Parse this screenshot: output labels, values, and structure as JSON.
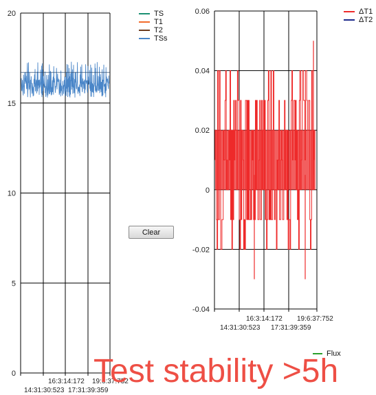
{
  "clear_button": {
    "label": "Clear"
  },
  "overlay_text": "Test stability >5h",
  "colors": {
    "TS": "#1a8f72",
    "T1": "#f26b2a",
    "T2": "#6b3a1e",
    "TSs": "#4a86c8",
    "dT1": "#ee2a2a",
    "dT2": "#1c2a8c",
    "Flux": "#2aa02a",
    "overlay": "#ee4f45"
  },
  "flux_legend": {
    "label": "Flux"
  },
  "chart_data": [
    {
      "type": "line",
      "title": "",
      "xlabel": "",
      "ylabel": "",
      "ylim": [
        0,
        20
      ],
      "yticks": [
        0,
        5,
        10,
        15,
        20
      ],
      "x_tick_labels_row1": [
        "16:3:14:172",
        "19:6:37:752"
      ],
      "x_tick_labels_row2": [
        "14:31:30:523",
        "17:31:39:359"
      ],
      "grid": true,
      "legend": "top-right",
      "series": [
        {
          "name": "TS",
          "values": []
        },
        {
          "name": "T1",
          "values": []
        },
        {
          "name": "T2",
          "values": []
        },
        {
          "name": "TSs",
          "noise_band": {
            "low": 15.2,
            "high": 17.6,
            "mean": 16.3
          }
        }
      ]
    },
    {
      "type": "line",
      "title": "",
      "xlabel": "",
      "ylabel": "",
      "ylim": [
        -0.04,
        0.06
      ],
      "yticks": [
        -0.04,
        -0.02,
        0,
        0.02,
        0.04,
        0.06
      ],
      "y_tick_labels": [
        "-0.04",
        "-0.02",
        "0",
        "0.02",
        "0.04",
        "0.06"
      ],
      "x_tick_labels_row1": [
        "16:3:14:172",
        "19:6:37:752"
      ],
      "x_tick_labels_row2": [
        "14:31:30:523",
        "17:31:39:359"
      ],
      "grid": true,
      "legend": "top-right",
      "series": [
        {
          "name": "ΔT1",
          "levels": [
            -0.02,
            -0.01,
            0,
            0.01,
            0.02,
            0.03,
            0.04
          ],
          "extremes": [
            -0.03,
            0.05
          ]
        },
        {
          "name": "ΔT2",
          "values": []
        }
      ]
    }
  ]
}
